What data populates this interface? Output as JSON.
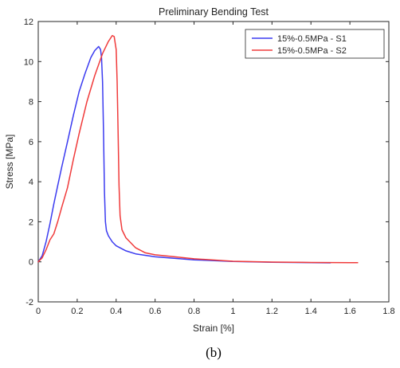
{
  "figure": {
    "caption": "(b)"
  },
  "chart_data": {
    "type": "line",
    "title": "Preliminary Bending Test",
    "xlabel": "Strain [%]",
    "ylabel": "Stress [MPa]",
    "xlim": [
      0,
      1.8
    ],
    "ylim": [
      -2,
      12
    ],
    "xticks": [
      0,
      0.2,
      0.4,
      0.6,
      0.8,
      1,
      1.2,
      1.4,
      1.6,
      1.8
    ],
    "xtick_labels": [
      "0",
      "0.2",
      "0.4",
      "0.6",
      "0.8",
      "1",
      "1.2",
      "1.4",
      "1.6",
      "1.8"
    ],
    "yticks": [
      -2,
      0,
      2,
      4,
      6,
      8,
      10,
      12
    ],
    "ytick_labels": [
      "-2",
      "0",
      "2",
      "4",
      "6",
      "8",
      "10",
      "12"
    ],
    "grid": false,
    "legend_position": "top-right",
    "series": [
      {
        "name": "15%-0.5MPa - S1",
        "color": "#3b3bf0",
        "x": [
          0.0,
          0.02,
          0.04,
          0.06,
          0.08,
          0.1,
          0.12,
          0.15,
          0.18,
          0.21,
          0.24,
          0.27,
          0.29,
          0.31,
          0.32,
          0.325,
          0.33,
          0.335,
          0.34,
          0.345,
          0.35,
          0.36,
          0.38,
          0.4,
          0.45,
          0.5,
          0.6,
          0.8,
          1.0,
          1.2,
          1.4,
          1.5
        ],
        "y": [
          0.0,
          0.3,
          1.0,
          1.9,
          2.9,
          3.8,
          4.7,
          6.0,
          7.3,
          8.5,
          9.4,
          10.2,
          10.55,
          10.75,
          10.6,
          10.2,
          9.0,
          6.5,
          3.5,
          2.0,
          1.55,
          1.3,
          1.0,
          0.8,
          0.55,
          0.4,
          0.25,
          0.1,
          0.02,
          -0.02,
          -0.04,
          -0.05
        ]
      },
      {
        "name": "15%-0.5MPa - S2",
        "color": "#f03b3b",
        "x": [
          0.0,
          0.02,
          0.04,
          0.06,
          0.08,
          0.1,
          0.12,
          0.15,
          0.18,
          0.21,
          0.25,
          0.29,
          0.33,
          0.36,
          0.38,
          0.39,
          0.4,
          0.405,
          0.41,
          0.415,
          0.42,
          0.43,
          0.45,
          0.5,
          0.55,
          0.6,
          0.8,
          1.0,
          1.2,
          1.4,
          1.6,
          1.64
        ],
        "y": [
          0.0,
          0.2,
          0.6,
          1.1,
          1.4,
          2.0,
          2.7,
          3.7,
          5.1,
          6.4,
          8.0,
          9.3,
          10.4,
          11.0,
          11.3,
          11.25,
          10.6,
          9.0,
          6.5,
          3.8,
          2.3,
          1.6,
          1.2,
          0.7,
          0.45,
          0.35,
          0.15,
          0.03,
          -0.01,
          -0.03,
          -0.04,
          -0.04
        ]
      }
    ]
  }
}
